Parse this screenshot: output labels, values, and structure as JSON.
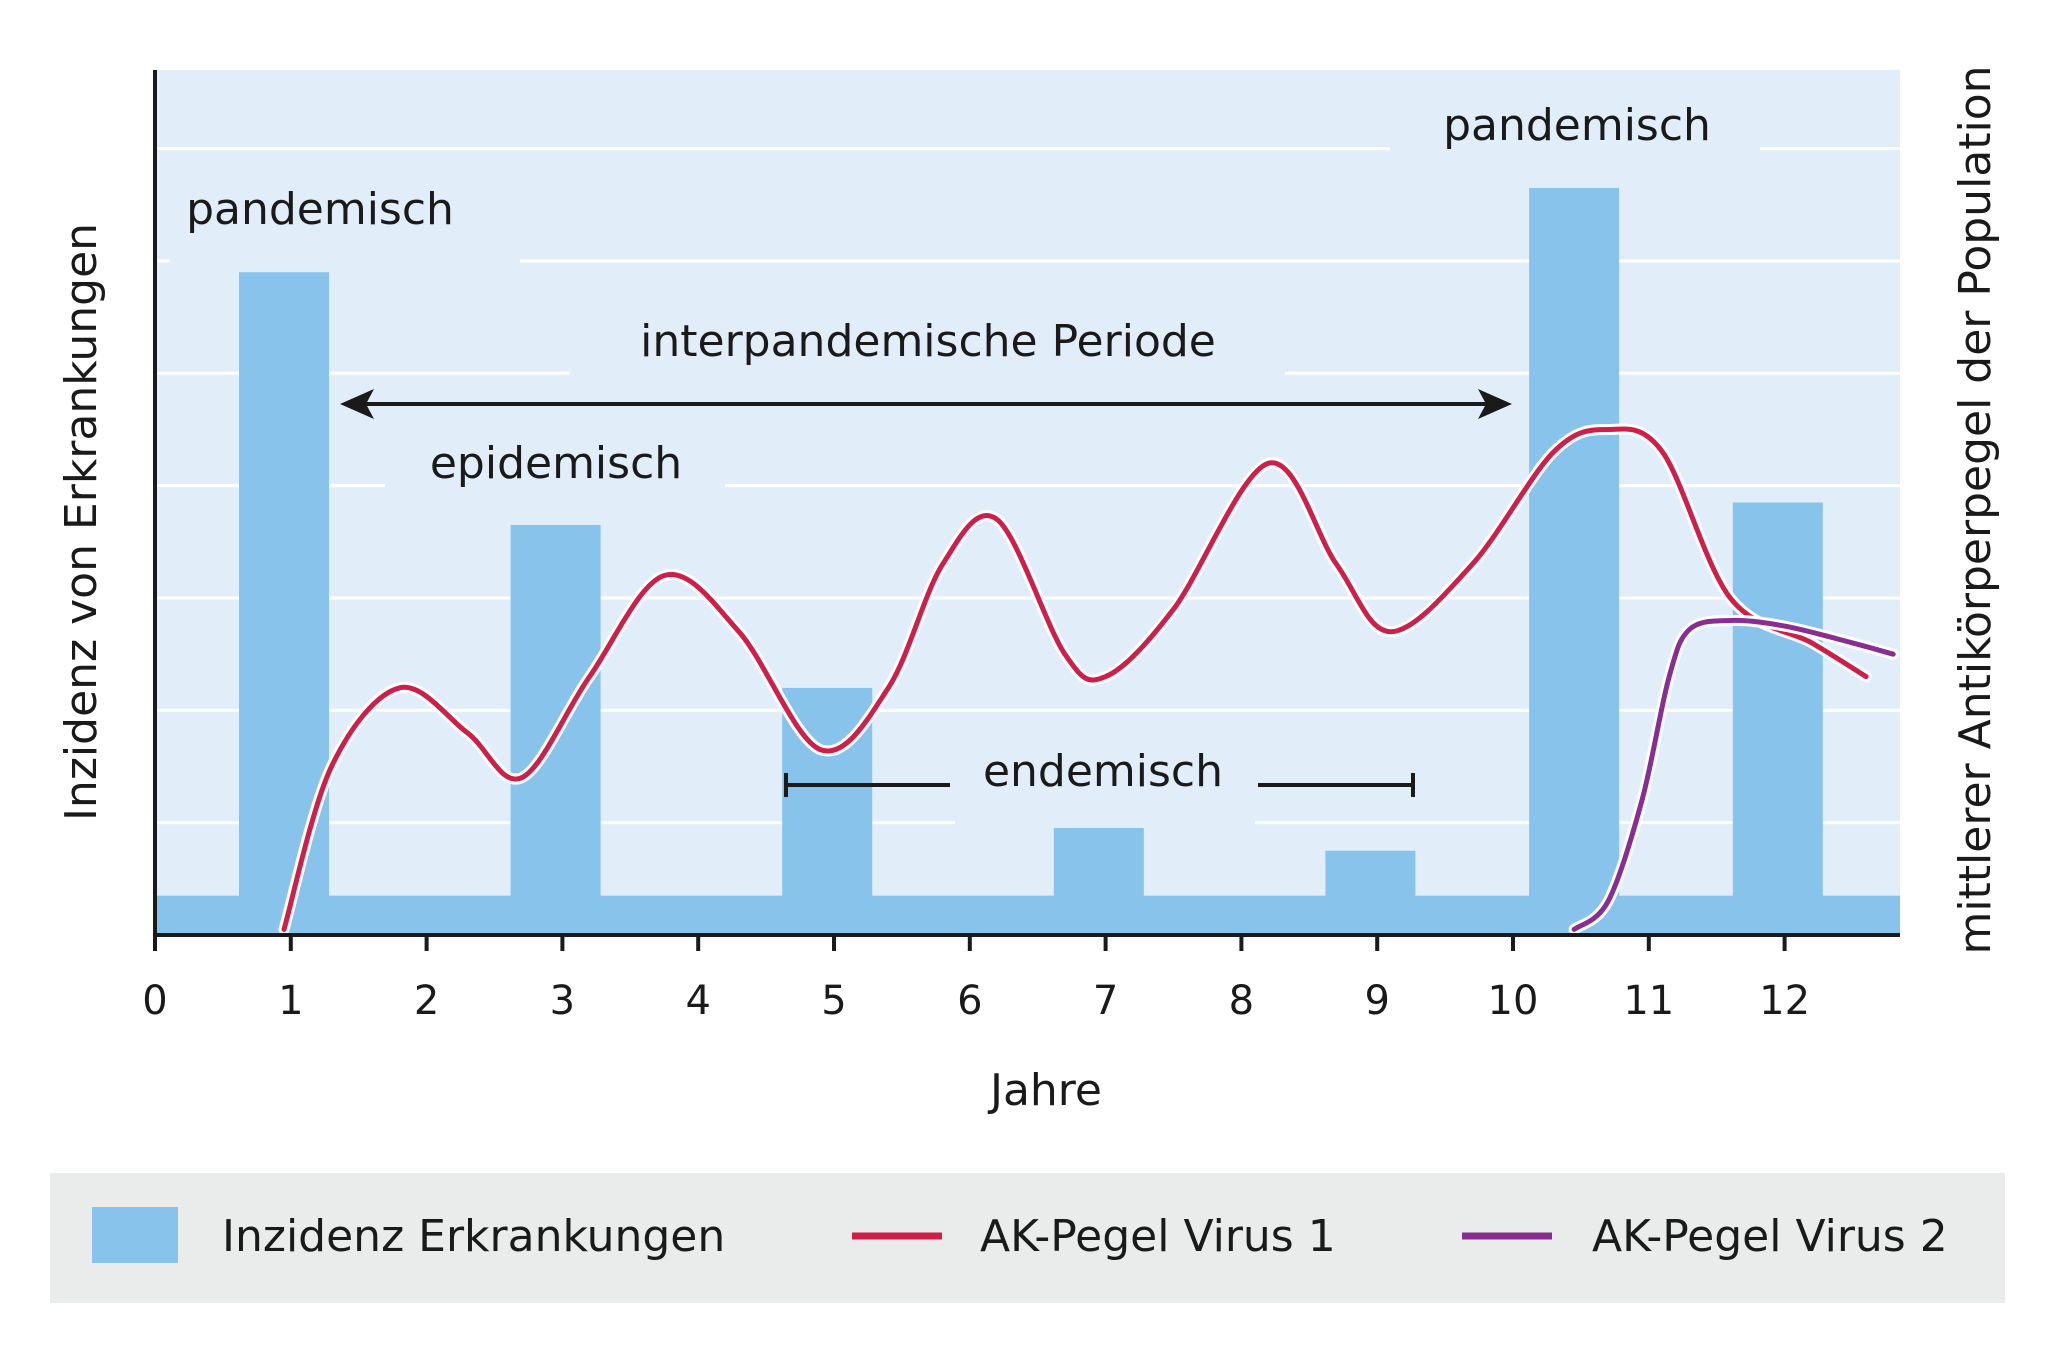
{
  "chart_data": {
    "type": "bar",
    "xlabel": "Jahre",
    "ylabel_left": "Inzidenz von Erkrankungen",
    "ylabel_right": "mittlerer Antikörperpegel der Population",
    "x_ticks": [
      "0",
      "1",
      "2",
      "3",
      "4",
      "5",
      "6",
      "7",
      "8",
      "9",
      "10",
      "11",
      "12"
    ],
    "xlim": [
      0,
      12.9
    ],
    "ylim": [
      0,
      7.7
    ],
    "grid": true,
    "baseline_level": 0.35,
    "bars": {
      "name": "Inzidenz Erkrankungen",
      "color": "#87c3ea",
      "x": [
        0.95,
        2.95,
        4.95,
        6.95,
        8.95,
        10.45,
        11.95
      ],
      "values": [
        5.9,
        3.65,
        2.2,
        1.1,
        0.75,
        6.65,
        3.85
      ]
    },
    "series": [
      {
        "name": "AK-Pegel Virus 1",
        "color": "#cc1f4a",
        "x": [
          0.95,
          1.3,
          1.8,
          2.3,
          2.7,
          3.2,
          3.75,
          4.3,
          4.9,
          5.4,
          5.8,
          6.2,
          6.7,
          7.0,
          7.5,
          8.2,
          8.7,
          9.1,
          9.7,
          10.3,
          10.7,
          11.1,
          11.6,
          12.2,
          12.6
        ],
        "values": [
          0.05,
          1.5,
          2.2,
          1.8,
          1.4,
          2.3,
          3.2,
          2.7,
          1.65,
          2.2,
          3.3,
          3.7,
          2.5,
          2.3,
          2.9,
          4.2,
          3.3,
          2.7,
          3.3,
          4.3,
          4.5,
          4.3,
          3.0,
          2.6,
          2.3
        ]
      },
      {
        "name": "AK-Pegel Virus 2",
        "color": "#8a2d91",
        "x": [
          10.45,
          10.7,
          10.95,
          11.15,
          11.3,
          11.6,
          12.0,
          12.5,
          12.8
        ],
        "values": [
          0.05,
          0.3,
          1.2,
          2.3,
          2.72,
          2.8,
          2.75,
          2.6,
          2.5
        ]
      }
    ],
    "annotations": {
      "pandemic_left": "pandemisch",
      "pandemic_right": "pandemisch",
      "interpandemic": "interpandemische Periode",
      "epidemic": "epidemisch",
      "endemic": "endemisch"
    },
    "legend": {
      "placement": "bottom",
      "items": [
        "Inzidenz Erkrankungen",
        "AK-Pegel Virus 1",
        "AK-Pegel Virus 2"
      ]
    }
  },
  "colors": {
    "plot_background": "#e1eefa",
    "grid": "#ffffff",
    "axis": "#1a1a1a",
    "legend_background": "#eaecec"
  }
}
